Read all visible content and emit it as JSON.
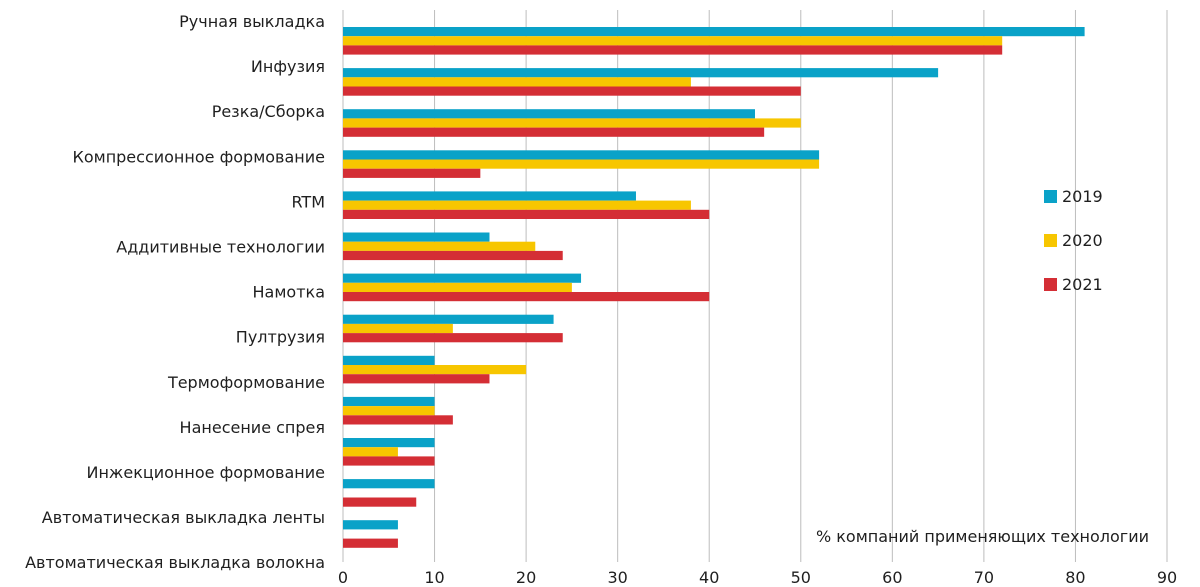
{
  "chart_data": {
    "type": "bar",
    "orientation": "horizontal",
    "title": "",
    "xlabel": "% компаний применяющих технологии",
    "ylabel": "",
    "xlim": [
      0,
      90
    ],
    "xticks": [
      0,
      10,
      20,
      30,
      40,
      50,
      60,
      70,
      80,
      90
    ],
    "grid": true,
    "legend_position": "right",
    "categories": [
      "Ручная выкладка",
      "Инфузия",
      "Резка/Сборка",
      "Компрессионное формование",
      "RTM",
      "Аддитивные технологии",
      "Намотка",
      "Пултрузия",
      "Термоформование",
      "Нанесение спрея",
      "Инжекционное формование",
      "Автоматическая выкладка ленты",
      "Автоматическая выкладка волокна"
    ],
    "series": [
      {
        "name": "2019",
        "color": "#0aa2c8",
        "values": [
          81,
          65,
          45,
          52,
          32,
          16,
          26,
          23,
          10,
          10,
          10,
          10,
          6
        ]
      },
      {
        "name": "2020",
        "color": "#f7c600",
        "values": [
          72,
          38,
          50,
          52,
          38,
          21,
          25,
          12,
          20,
          10,
          6,
          0,
          0
        ]
      },
      {
        "name": "2021",
        "color": "#d42e35",
        "values": [
          72,
          50,
          46,
          15,
          40,
          24,
          40,
          24,
          16,
          12,
          10,
          8,
          6
        ]
      }
    ]
  }
}
